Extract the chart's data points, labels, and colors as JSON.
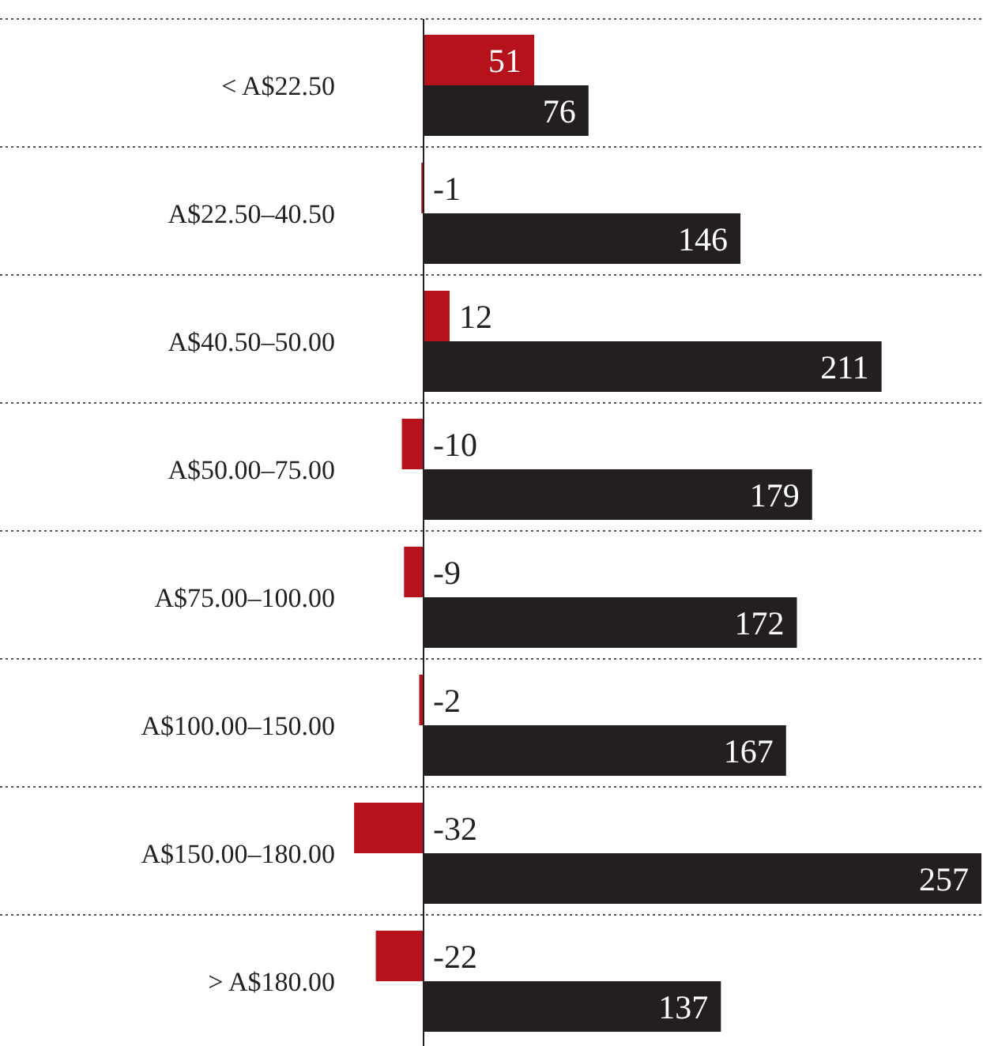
{
  "chart_data": {
    "type": "bar",
    "orientation": "horizontal",
    "categories": [
      "< A$22.50",
      "A$22.50–40.50",
      "A$40.50–50.00",
      "A$50.00–75.00",
      "A$75.00–100.00",
      "A$100.00–150.00",
      "A$150.00–180.00",
      "> A$180.00"
    ],
    "series": [
      {
        "color": "#b5121b",
        "values": [
          51,
          -1,
          12,
          -10,
          -9,
          -2,
          -32,
          -22
        ]
      },
      {
        "color": "#231f20",
        "values": [
          76,
          146,
          211,
          179,
          172,
          167,
          257,
          137
        ]
      }
    ],
    "data_labels": true,
    "grid": "y"
  }
}
